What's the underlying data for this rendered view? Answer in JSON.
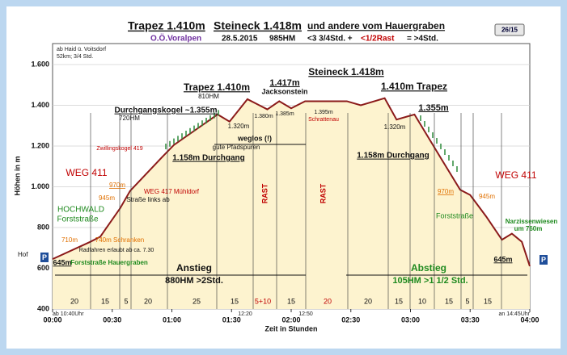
{
  "chart_data": {
    "type": "area",
    "badge": "26/15",
    "title": [
      "Trapez 1.410m",
      "Steineck 1.418m",
      "und andere vom Hauergraben"
    ],
    "subtitle": [
      "O.Ö.Voralpen",
      "28.5.2015",
      "985HM",
      "<3 3/4Std. +",
      "<1/2Rast",
      "= >4Std."
    ],
    "start_note": [
      "ab Haid ü. Voitsdorf",
      "52km; 3/4 Std."
    ],
    "y_label": "Höhen in m",
    "x_label": "Zeit in Stunden",
    "left_marker": "Hof",
    "parking": [
      "P",
      "P"
    ],
    "time_notes": [
      "ab 10:40Uhr",
      "12:20",
      "12:50",
      "an 14:45Uhr"
    ],
    "color": "#8b1a1a",
    "fill": "#fdf3cf",
    "x": [
      0,
      19,
      24,
      34,
      39,
      55,
      61,
      83,
      89,
      98,
      104,
      108,
      114,
      120,
      127,
      148,
      155,
      167,
      173,
      182,
      195,
      205,
      210,
      218,
      226,
      231,
      236,
      240
    ],
    "values": [
      645,
      730,
      755,
      895,
      980,
      1145,
      1205,
      1355,
      1320,
      1430,
      1400,
      1380,
      1420,
      1385,
      1420,
      1420,
      1400,
      1435,
      1330,
      1355,
      1145,
      985,
      960,
      855,
      740,
      770,
      730,
      610
    ],
    "xlim": [
      0,
      240
    ],
    "xticks": [
      {
        "value": 0,
        "label": "00:00"
      },
      {
        "value": 30,
        "label": "00:30"
      },
      {
        "value": 60,
        "label": "01:00"
      },
      {
        "value": 90,
        "label": "01:30"
      },
      {
        "value": 120,
        "label": "02:00"
      },
      {
        "value": 150,
        "label": "02:30"
      },
      {
        "value": 180,
        "label": "03:00"
      },
      {
        "value": 210,
        "label": "03:30"
      },
      {
        "value": 240,
        "label": "04:00"
      }
    ],
    "ylim": [
      400,
      1600
    ],
    "yticks": [
      400,
      600,
      800,
      {
        "value": 1000,
        "label": "1.000"
      },
      {
        "value": 1200,
        "label": "1.200"
      },
      {
        "value": 1400,
        "label": "1.400"
      },
      {
        "value": 1600,
        "label": "1.600"
      }
    ],
    "segments": [
      20,
      15,
      5,
      20,
      25,
      15,
      "5+10",
      15,
      20,
      20,
      15,
      10,
      15,
      5,
      15
    ],
    "annotations": [
      "Steineck 1.418m",
      "1.417m",
      "Jacksonstein",
      "Trapez 1.410m",
      "810HM",
      "1.410m Trapez",
      "Durchgangskogel ~1.355m",
      "720HM",
      "1.355m",
      "1.320m",
      "1.380m",
      "1.385m",
      "1.395m",
      "Schrattenau",
      "1.320m",
      "weglos (!)",
      "gute Pfadspuren",
      "Zwillingskogel 419",
      "1.158m Durchgang",
      "1.158m Durchgang",
      "WEG 411",
      "WEG 411",
      "970m",
      "WEG 417 Mühldorf",
      "945m",
      "Straße links ab",
      "970m",
      "945m",
      "HOCHWALD",
      "Forststraße",
      "Forststraße",
      "Narzissenwiesen",
      "um 760m",
      "710m",
      "740m Schranken",
      "Radfahren erlaubt ab ca. 7.30",
      "645m",
      "Forststraße Hauergraben",
      "645m",
      "Anstieg",
      "880HM  >2Std.",
      "Abstieg",
      "105HM  >1 1/2 Std.",
      "RAST",
      "RAST"
    ]
  }
}
